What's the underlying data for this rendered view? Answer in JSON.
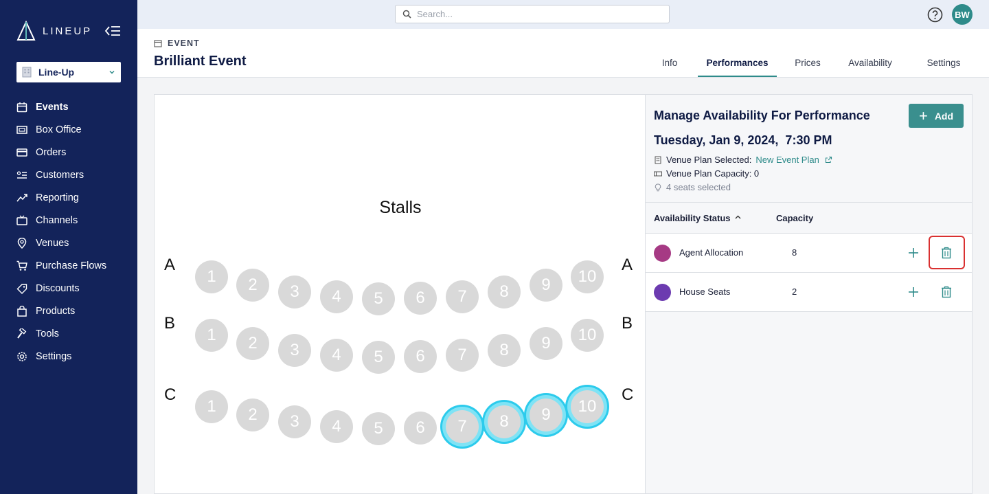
{
  "app": {
    "logo_text": "LINEUP",
    "org_select_value": "Line-Up",
    "accent_color": "#2e8b8a",
    "sidebar_color": "#13235a"
  },
  "sidebar": {
    "items": [
      {
        "label": "Events",
        "icon": "calendar-icon",
        "active": true
      },
      {
        "label": "Box Office",
        "icon": "box-office-icon"
      },
      {
        "label": "Orders",
        "icon": "card-icon"
      },
      {
        "label": "Customers",
        "icon": "customers-list-icon"
      },
      {
        "label": "Reporting",
        "icon": "trend-icon"
      },
      {
        "label": "Channels",
        "icon": "tv-icon"
      },
      {
        "label": "Venues",
        "icon": "location-pin-icon"
      },
      {
        "label": "Purchase Flows",
        "icon": "cart-icon"
      },
      {
        "label": "Discounts",
        "icon": "tag-icon"
      },
      {
        "label": "Products",
        "icon": "bag-icon"
      },
      {
        "label": "Tools",
        "icon": "hammer-icon"
      },
      {
        "label": "Settings",
        "icon": "gear-icon"
      }
    ]
  },
  "topbar": {
    "search_placeholder": "Search...",
    "avatar_initials": "BW"
  },
  "page": {
    "kicker": "EVENT",
    "title": "Brilliant Event",
    "tabs": [
      {
        "label": "Info"
      },
      {
        "label": "Performances",
        "active": true
      },
      {
        "label": "Prices"
      },
      {
        "label": "Availability"
      },
      {
        "label": "Settings"
      }
    ]
  },
  "seat_map": {
    "stage_label": "Stalls",
    "rows": [
      {
        "label": "A",
        "seats": [
          "1",
          "2",
          "3",
          "4",
          "5",
          "6",
          "7",
          "8",
          "9",
          "10"
        ],
        "selected": []
      },
      {
        "label": "B",
        "seats": [
          "1",
          "2",
          "3",
          "4",
          "5",
          "6",
          "7",
          "8",
          "9",
          "10"
        ],
        "selected": []
      },
      {
        "label": "C",
        "seats": [
          "1",
          "2",
          "3",
          "4",
          "5",
          "6",
          "7",
          "8",
          "9",
          "10"
        ],
        "selected": [
          "7",
          "8",
          "9",
          "10"
        ]
      }
    ],
    "seat_color": "#d9d9d9",
    "selected_ring_color": "#2ccbec"
  },
  "panel": {
    "title": "Manage Availability For Performance",
    "add_label": "Add",
    "performance_date": "Tuesday, Jan 9, 2024,  7:30 PM",
    "venue_plan_label": "Venue Plan Selected:",
    "venue_plan_link": "New Event Plan",
    "capacity_label": "Venue Plan Capacity: 0",
    "seats_selected": "4 seats selected",
    "table": {
      "col_status": "Availability Status",
      "col_capacity": "Capacity",
      "rows": [
        {
          "name": "Agent Allocation",
          "capacity": "8",
          "color": "#a63a84"
        },
        {
          "name": "House Seats",
          "capacity": "2",
          "color": "#6c3bb0"
        }
      ]
    }
  }
}
